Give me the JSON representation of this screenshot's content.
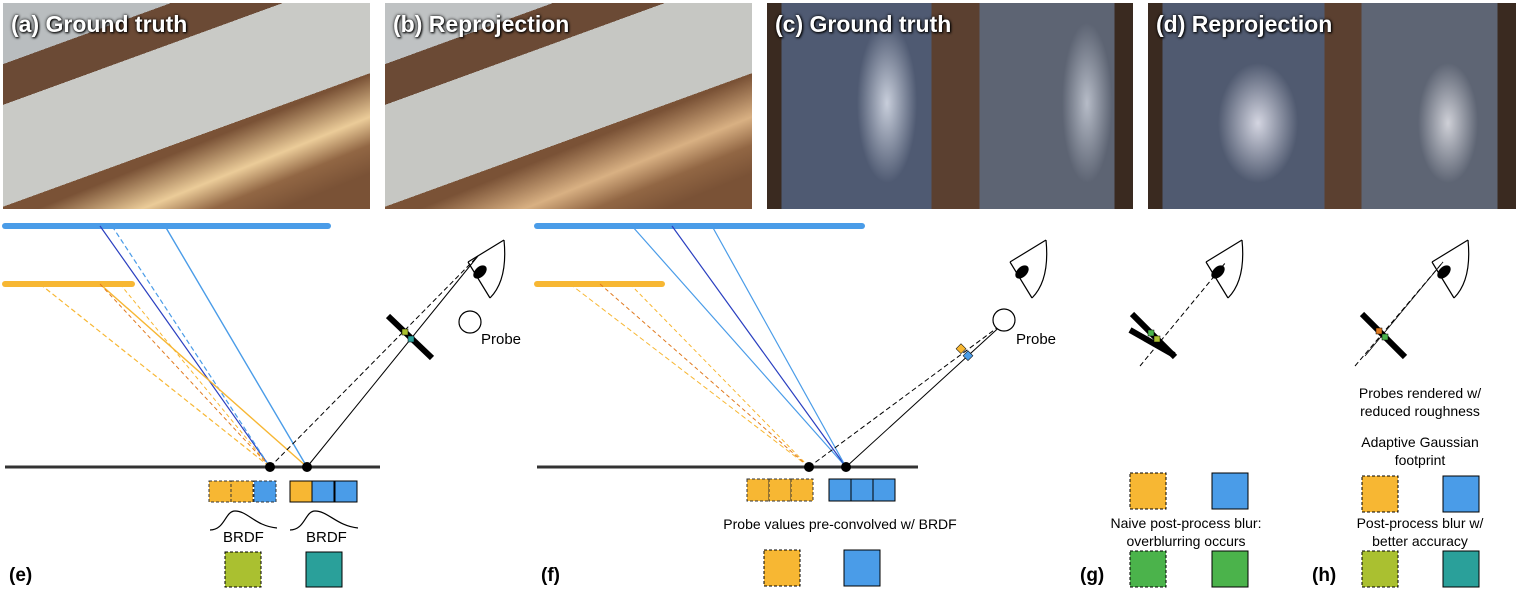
{
  "photos": {
    "a": "(a) Ground truth",
    "b": "(b) Reprojection",
    "c": "(c) Ground truth",
    "d": "(d) Reprojection"
  },
  "subfigures": {
    "e": "(e)",
    "f": "(f)",
    "g": "(g)",
    "h": "(h)"
  },
  "labels": {
    "probe_e": "Probe",
    "probe_f": "Probe",
    "brdf_left": "BRDF",
    "brdf_right": "BRDF",
    "preconvolved": "Probe values pre-convolved w/ BRDF",
    "naive_blur_1": "Naive post-process blur:",
    "naive_blur_2": "overblurring occurs",
    "probes_rendered_1": "Probes rendered w/",
    "probes_rendered_2": "reduced roughness",
    "adaptive_1": "Adaptive Gaussian",
    "adaptive_2": "footprint",
    "better_blur_1": "Post-process blur w/",
    "better_blur_2": "better accuracy"
  },
  "colors": {
    "blue_light": "#4a9ce8",
    "blue_dark": "#2a3fc0",
    "orange": "#f7b733",
    "orange_dark": "#e07a20",
    "olive": "#aac030",
    "teal": "#2aa09a",
    "green": "#4bb34b"
  }
}
